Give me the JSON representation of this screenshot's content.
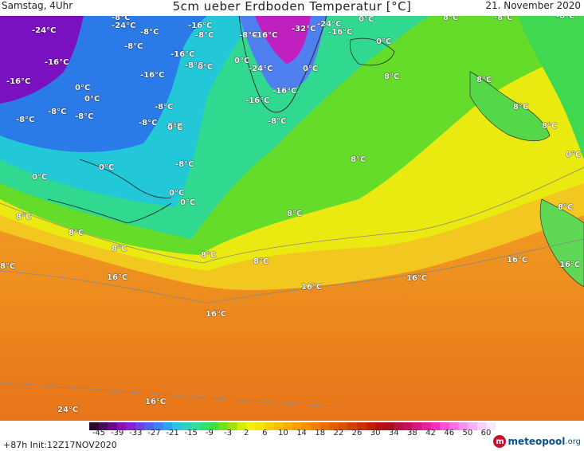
{
  "header": {
    "left": "Samstag, 4Uhr",
    "title": "5cm ueber Erdboden Temperatur [°C]",
    "right": "21. November 2020"
  },
  "map": {
    "labels": [
      "-24°C",
      "-8°C",
      "-24°C",
      "-8°C",
      "-16°C",
      "-8°C",
      "-8°C",
      "-16°C",
      "-32°C",
      "-16°C",
      "-24°C",
      "0°C",
      "8°C",
      "-8°C",
      "-8°C",
      "-16°C",
      "-8°C",
      "-16°C",
      "0°C",
      "0°C",
      "-24°C",
      "0°C",
      "8°C",
      "0°C",
      "-16°C",
      "-8°C",
      "-16°C",
      "0°C",
      "-16°C",
      "8°C",
      "0°C",
      "0°C",
      "-8°C",
      "-16°C",
      "8°C",
      "-8°C",
      "-8°C",
      "-8°C",
      "-8°C",
      "0°C",
      "-8°C",
      "8°C",
      "8°C",
      "0°C",
      "-8°C",
      "0°C",
      "0°C",
      "0°C",
      "0°C",
      "8°C",
      "8°C",
      "8°C",
      "8°C",
      "8°C",
      "8°C",
      "8°C",
      "16°C",
      "16°C",
      "8°C",
      "16°C",
      "16°C",
      "16°C",
      "16°C",
      "16°C",
      "24°C",
      "24°C"
    ]
  },
  "colorbar": {
    "ticks": [
      "-45",
      "-39",
      "-33",
      "-27",
      "-21",
      "-15",
      "-9",
      "-3",
      "2",
      "6",
      "10",
      "14",
      "18",
      "22",
      "26",
      "30",
      "34",
      "38",
      "42",
      "46",
      "50",
      "60"
    ],
    "colors": [
      "#2a0a2a",
      "#4a0a5a",
      "#6a0a8a",
      "#8a10b0",
      "#8a20d0",
      "#7040e0",
      "#5060f0",
      "#4080f0",
      "#30a0f0",
      "#30c0e0",
      "#30d0c0",
      "#30e0a0",
      "#30e070",
      "#40e040",
      "#70e020",
      "#a0e010",
      "#d0f000",
      "#f0f000",
      "#f8e000",
      "#f8d000",
      "#f8c000",
      "#f8b000",
      "#f8a000",
      "#f89000",
      "#f08000",
      "#e87000",
      "#e06000",
      "#d85000",
      "#d04000",
      "#c83000",
      "#c02000",
      "#b81010",
      "#a81020",
      "#b81040",
      "#c81060",
      "#d81880",
      "#e820a0",
      "#f030c0",
      "#f850d8",
      "#f870e8",
      "#f890f0",
      "#f8b0f8",
      "#f8d0f8",
      "#f8e8f8"
    ]
  },
  "footer": {
    "init": "+87h Init:12Z17NOV2020",
    "logo_mark": "m",
    "logo_main": "meteopool",
    "logo_suffix": ".org"
  },
  "legend_colors": {
    "deep_cold": "#7a10c0",
    "cold": "#2a7ae8",
    "freezing": "#22c8d8",
    "cool": "#30d890",
    "mild": "#50e030",
    "warm_yellow": "#e8f000",
    "orange": "#f0a020",
    "hot": "#e87818"
  }
}
